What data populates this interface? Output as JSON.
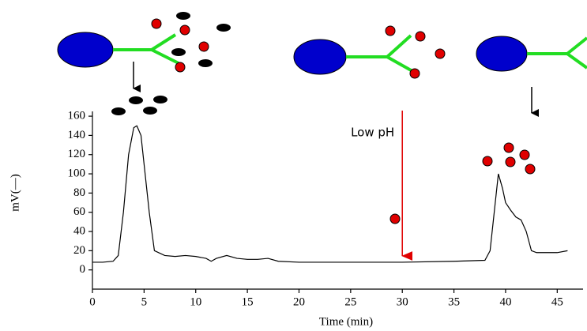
{
  "chart_data": {
    "type": "line",
    "x_label": "Time (min)",
    "y_label": "mV(—)",
    "x": [
      0,
      1,
      2,
      2.5,
      3,
      3.5,
      4,
      4.3,
      4.7,
      5,
      5.5,
      6,
      7,
      8,
      9,
      10,
      11,
      11.5,
      12,
      13,
      14,
      15,
      16,
      17,
      18,
      20,
      25,
      30,
      35,
      38,
      38.5,
      39,
      39.3,
      39.7,
      40,
      40.5,
      41,
      41.5,
      42,
      42.5,
      43,
      45,
      46
    ],
    "values": [
      8,
      8,
      9,
      15,
      60,
      120,
      148,
      150,
      140,
      110,
      60,
      20,
      15,
      14,
      15,
      14,
      12,
      9,
      12,
      15,
      12,
      11,
      11,
      12,
      9,
      8,
      8,
      8,
      9,
      10,
      20,
      70,
      100,
      85,
      70,
      62,
      55,
      52,
      40,
      20,
      18,
      18,
      20
    ],
    "color": "#000000",
    "xlim": [
      0,
      47.5
    ],
    "xticks": [
      0,
      5,
      10,
      15,
      20,
      25,
      30,
      35,
      40,
      45
    ],
    "ylim": [
      -20,
      165
    ],
    "yticks": [
      0,
      20,
      40,
      60,
      80,
      100,
      120,
      140,
      160
    ],
    "grid": false,
    "annotation": {
      "text": "Low pH",
      "x": 30,
      "color": "#e00000"
    }
  }
}
